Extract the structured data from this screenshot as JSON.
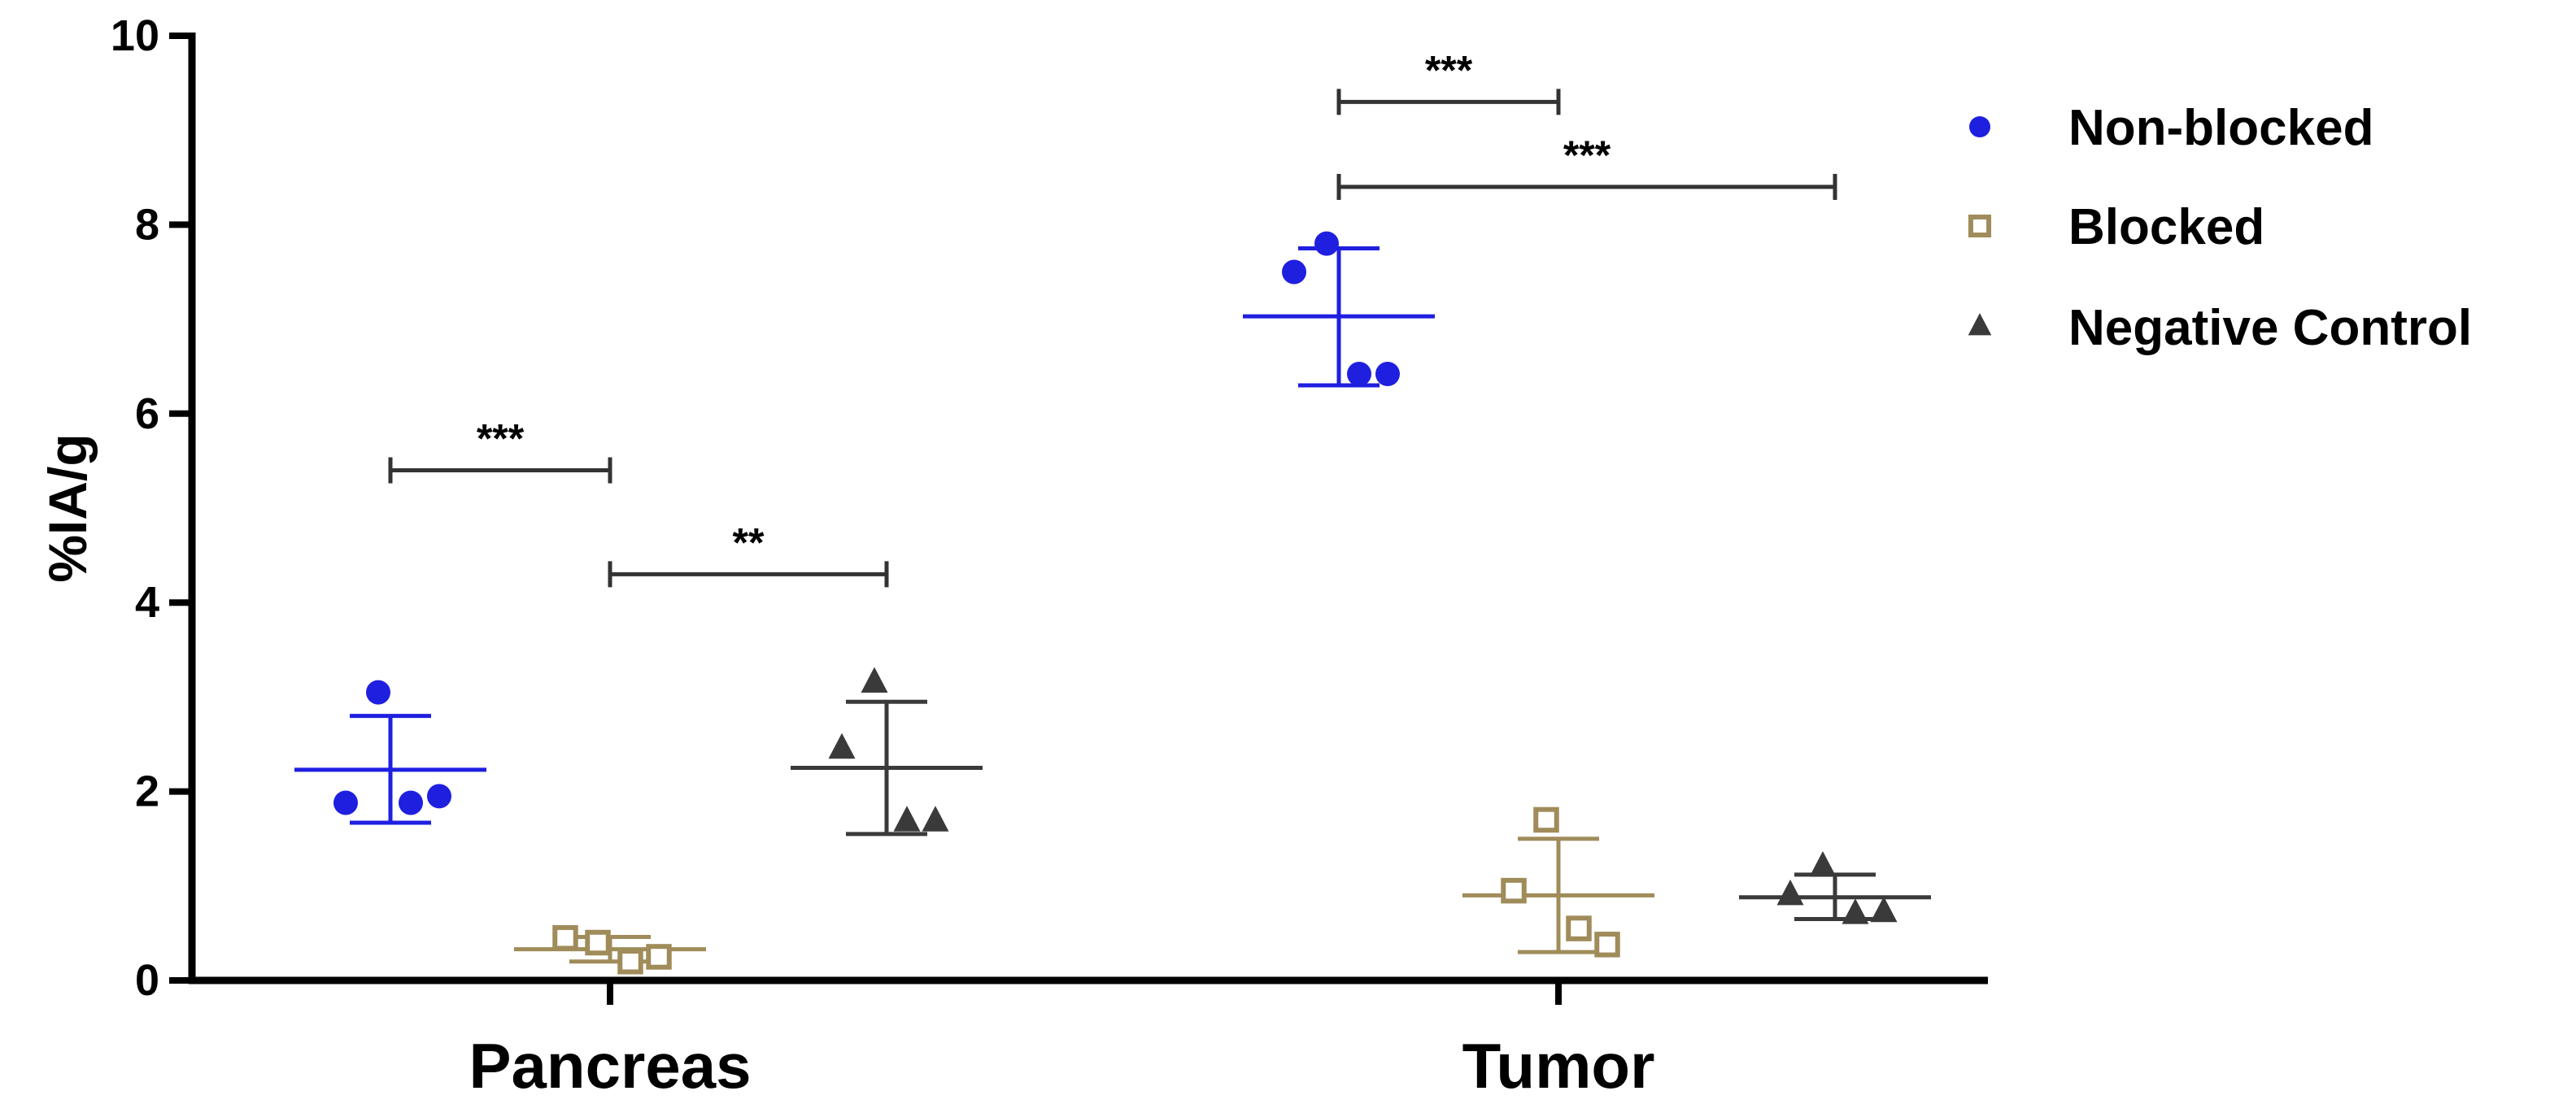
{
  "chart_data": {
    "type": "scatter",
    "title": "",
    "xlabel": "",
    "ylabel": "%IA/g",
    "ylim": [
      0,
      10
    ],
    "yticks": [
      "0",
      "2",
      "4",
      "6",
      "8",
      "10"
    ],
    "categories": [
      "Pancreas",
      "Tumor"
    ],
    "grid": false,
    "legend_position": "top-right",
    "colors": {
      "Non-blocked": "#1f1fe0",
      "Blocked": "#a08c5a",
      "Negative Control": "#3a3a3a"
    },
    "series": [
      {
        "name": "Non-blocked",
        "marker": "circle",
        "groups": [
          {
            "category": "Pancreas",
            "points": [
              3.05,
              1.88,
              1.88,
              1.95
            ],
            "mean": 2.23,
            "err_low": 1.67,
            "err_high": 2.8
          },
          {
            "category": "Tumor",
            "points": [
              7.8,
              7.5,
              6.42,
              6.42
            ],
            "mean": 7.03,
            "err_low": 6.3,
            "err_high": 7.75
          }
        ]
      },
      {
        "name": "Blocked",
        "marker": "square",
        "groups": [
          {
            "category": "Pancreas",
            "points": [
              0.4,
              0.45,
              0.2,
              0.25
            ],
            "mean": 0.33,
            "err_low": 0.2,
            "err_high": 0.46
          },
          {
            "category": "Tumor",
            "points": [
              1.7,
              0.95,
              0.55,
              0.38
            ],
            "mean": 0.9,
            "err_low": 0.3,
            "err_high": 1.5
          }
        ]
      },
      {
        "name": "Negative Control",
        "marker": "triangle",
        "groups": [
          {
            "category": "Pancreas",
            "points": [
              3.15,
              2.45,
              1.68,
              1.68
            ],
            "mean": 2.25,
            "err_low": 1.55,
            "err_high": 2.95
          },
          {
            "category": "Tumor",
            "points": [
              1.2,
              0.9,
              0.7,
              0.72
            ],
            "mean": 0.88,
            "err_low": 0.65,
            "err_high": 1.12
          }
        ]
      }
    ],
    "significance": [
      {
        "category": "Pancreas",
        "from": "Non-blocked",
        "to": "Blocked",
        "y": 5.4,
        "label": "***"
      },
      {
        "category": "Pancreas",
        "from": "Blocked",
        "to": "Negative Control",
        "y": 4.3,
        "label": "**"
      },
      {
        "category": "Tumor",
        "from": "Non-blocked",
        "to": "Blocked",
        "y": 9.3,
        "label": "***"
      },
      {
        "category": "Tumor",
        "from": "Non-blocked",
        "to": "Negative Control",
        "y": 8.4,
        "label": "***"
      }
    ]
  }
}
